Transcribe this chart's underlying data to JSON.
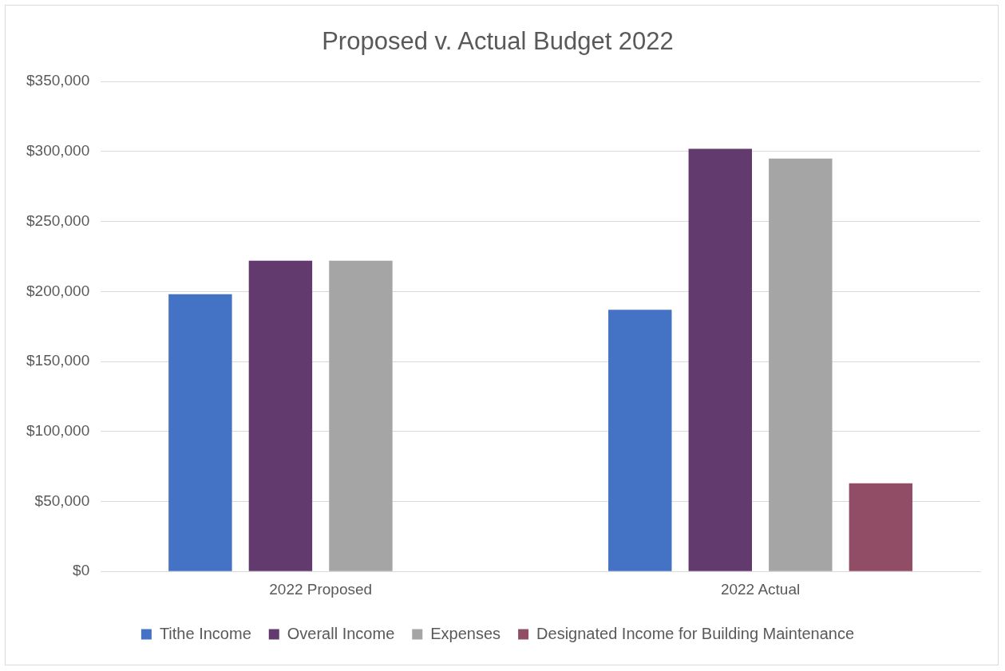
{
  "chart_data": {
    "type": "bar",
    "title": "Proposed v. Actual Budget 2022",
    "categories": [
      "2022 Proposed",
      "2022 Actual"
    ],
    "series": [
      {
        "name": "Tithe Income",
        "color": "#4472c4",
        "values": [
          198000,
          187000
        ]
      },
      {
        "name": "Overall Income",
        "color": "#633a6d",
        "values": [
          222000,
          302000
        ]
      },
      {
        "name": "Expenses",
        "color": "#a5a5a5",
        "values": [
          222000,
          295000
        ]
      },
      {
        "name": "Designated Income for Building Maintenance",
        "color": "#914d66",
        "values": [
          null,
          63000
        ]
      }
    ],
    "ylim": [
      0,
      350000
    ],
    "yticks": [
      {
        "value": 0,
        "label": "$0"
      },
      {
        "value": 50000,
        "label": "$50,000"
      },
      {
        "value": 100000,
        "label": "$100,000"
      },
      {
        "value": 150000,
        "label": "$150,000"
      },
      {
        "value": 200000,
        "label": "$200,000"
      },
      {
        "value": 250000,
        "label": "$250,000"
      },
      {
        "value": 300000,
        "label": "$300,000"
      },
      {
        "value": 350000,
        "label": "$350,000"
      }
    ],
    "grid": "y",
    "legend": "bottom"
  }
}
